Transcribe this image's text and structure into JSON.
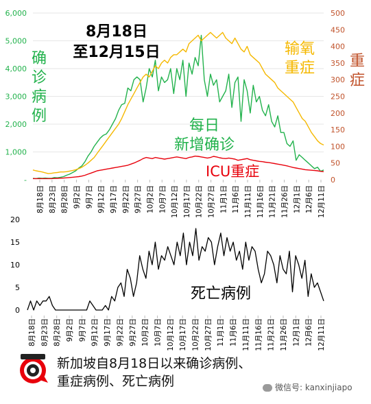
{
  "title_lines": [
    "8月18日",
    "至12月15日"
  ],
  "left_axis_title": [
    "确",
    "诊",
    "病",
    "例"
  ],
  "right_axis_title": [
    "重",
    "症"
  ],
  "labels": {
    "oxygen": [
      "输氧",
      "重症"
    ],
    "daily": [
      "每日",
      "新增确诊"
    ],
    "icu": "ICU重症",
    "deaths": "死亡病例"
  },
  "footer_lines": [
    "新加坡自8月18日以来确诊病例、",
    "重症病例、死亡病例"
  ],
  "wechat_label": "微信号: kanxinjiapo",
  "colors": {
    "cases": "#22b24c",
    "oxygen": "#f5b800",
    "icu": "#e8000b",
    "deaths": "#000000",
    "left_axis": "#22b24c",
    "right_axis": "#c0522a",
    "grid": "#e6e6e6"
  },
  "chart_data": [
    {
      "type": "line",
      "x_tick_labels": [
        "8月18日",
        "8月23日",
        "8月28日",
        "9月2日",
        "9月7日",
        "9月12日",
        "9月17日",
        "9月22日",
        "9月27日",
        "10月2日",
        "10月7日",
        "10月12日",
        "10月17日",
        "10月22日",
        "10月27日",
        "11月1日",
        "11月6日",
        "11月11日",
        "11月16日",
        "11月21日",
        "11月26日",
        "12月1日",
        "12月6日",
        "12月11日"
      ],
      "y_left_ticks": [
        "-",
        "1,000",
        "2,000",
        "3,000",
        "4,000",
        "5,000",
        "6,000"
      ],
      "y_right_ticks": [
        "0",
        "50",
        "100",
        "150",
        "200",
        "250",
        "300",
        "350",
        "400",
        "450",
        "500"
      ],
      "ylim_left": [
        0,
        6000
      ],
      "ylim_right": [
        0,
        500
      ],
      "series": [
        {
          "axis": "left",
          "color_key": "cases",
          "values": [
            50,
            40,
            60,
            50,
            60,
            50,
            50,
            80,
            70,
            90,
            110,
            160,
            200,
            260,
            320,
            420,
            500,
            650,
            850,
            1000,
            1200,
            1350,
            1500,
            1600,
            1650,
            1800,
            2000,
            2200,
            2500,
            2700,
            2750,
            3300,
            3200,
            3600,
            3700,
            3600,
            2800,
            3300,
            4000,
            3700,
            4300,
            3200,
            3700,
            3500,
            3600,
            4000,
            3100,
            4000,
            3600,
            4300,
            3000,
            4200,
            3800,
            4400,
            4100,
            5200,
            3600,
            3000,
            3800,
            3400,
            3600,
            2800,
            3000,
            3200,
            3800,
            2600,
            3500,
            3700,
            2100,
            3600,
            3200,
            2400,
            3400,
            2800,
            3000,
            2500,
            2300,
            2700,
            2100,
            1900,
            2300,
            1700,
            1700,
            1300,
            1200,
            1400,
            700,
            900,
            800,
            700,
            600,
            500,
            400,
            450,
            300,
            350
          ]
        },
        {
          "axis": "left",
          "color_key": "oxygen",
          "values": [
            350,
            320,
            300,
            280,
            250,
            220,
            230,
            250,
            260,
            280,
            280,
            290,
            310,
            330,
            360,
            400,
            450,
            520,
            600,
            700,
            800,
            950,
            1100,
            1250,
            1400,
            1550,
            1700,
            1850,
            2000,
            2200,
            2450,
            2700,
            2900,
            3100,
            3300,
            3500,
            3700,
            3800,
            3700,
            3900,
            4100,
            4000,
            4200,
            4300,
            4200,
            4400,
            4500,
            4500,
            4600,
            4700,
            4600,
            4900,
            5000,
            5100,
            5200,
            5000,
            5100,
            5200,
            5300,
            5200,
            5100,
            5200,
            5300,
            5100,
            5000,
            4900,
            5100,
            4900,
            4700,
            4600,
            4800,
            4500,
            4400,
            4300,
            4200,
            4000,
            3800,
            3700,
            3600,
            3500,
            3300,
            3200,
            3100,
            3000,
            2900,
            2800,
            2600,
            2400,
            2200,
            2100,
            1900,
            1700,
            1550,
            1400,
            1300,
            1250
          ]
        },
        {
          "axis": "left",
          "color_key": "icu",
          "values": [
            40,
            40,
            40,
            40,
            40,
            40,
            40,
            45,
            50,
            55,
            60,
            70,
            80,
            90,
            100,
            110,
            130,
            160,
            200,
            240,
            280,
            320,
            340,
            360,
            380,
            400,
            420,
            440,
            460,
            480,
            500,
            520,
            560,
            600,
            650,
            700,
            760,
            800,
            780,
            760,
            800,
            780,
            760,
            740,
            760,
            780,
            800,
            820,
            800,
            780,
            760,
            800,
            820,
            850,
            840,
            820,
            800,
            780,
            800,
            840,
            820,
            790,
            770,
            760,
            780,
            760,
            740,
            700,
            720,
            740,
            760,
            720,
            700,
            680,
            660,
            650,
            630,
            620,
            600,
            580,
            560,
            540,
            520,
            500,
            470,
            440,
            420,
            400,
            380,
            360,
            350,
            340,
            330,
            320,
            300,
            290
          ]
        }
      ]
    },
    {
      "type": "line",
      "x_tick_labels": [
        "8月18日",
        "8月23日",
        "8月28日",
        "9月2日",
        "9月7日",
        "9月12日",
        "9月17日",
        "9月22日",
        "9月27日",
        "10月2日",
        "10月7日",
        "10月12日",
        "10月17日",
        "10月22日",
        "10月27日",
        "11月1日",
        "11月6日",
        "11月11日",
        "11月16日",
        "11月21日",
        "11月26日",
        "12月1日",
        "12月6日",
        "12月11日"
      ],
      "y_ticks": [
        "0",
        "5",
        "10",
        "15",
        "20"
      ],
      "ylim": [
        0,
        20
      ],
      "series": [
        {
          "color_key": "deaths",
          "values": [
            0,
            2,
            0,
            2,
            1,
            2,
            2,
            3,
            1,
            0,
            0,
            0,
            0,
            0,
            0,
            0,
            0,
            0,
            0,
            0,
            2,
            1,
            0,
            0,
            0,
            1,
            0,
            3,
            2,
            5,
            6,
            3,
            9,
            7,
            3,
            6,
            12,
            9,
            7,
            13,
            10,
            15,
            9,
            12,
            11,
            14,
            12,
            10,
            15,
            12,
            17,
            10,
            15,
            12,
            18,
            11,
            14,
            13,
            16,
            15,
            10,
            14,
            17,
            12,
            16,
            13,
            15,
            11,
            13,
            9,
            15,
            11,
            14,
            13,
            9,
            6,
            8,
            13,
            12,
            10,
            6,
            12,
            9,
            8,
            13,
            4,
            12,
            10,
            7,
            11,
            3,
            8,
            5,
            6,
            4,
            2
          ]
        }
      ]
    }
  ]
}
